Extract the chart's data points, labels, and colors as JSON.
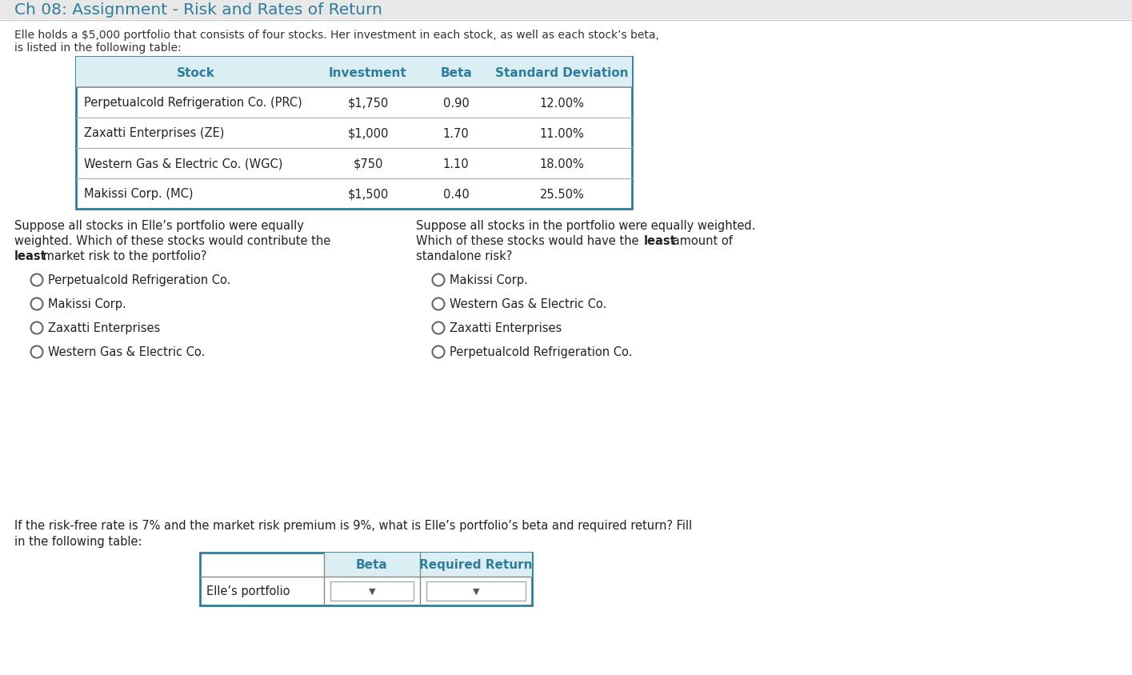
{
  "title": "Ch 08: Assignment - Risk and Rates of Return",
  "title_color": "#2E7D9C",
  "bg_color": "#ffffff",
  "header_bar_color": "#e8e8e8",
  "intro_line1": "Elle holds a $5,000 portfolio that consists of four stocks. Her investment in each stock, as well as each stock’s beta,",
  "intro_line2": "is listed in the following table:",
  "table_headers": [
    "Stock",
    "Investment",
    "Beta",
    "Standard Deviation"
  ],
  "table_rows": [
    [
      "Perpetualcold Refrigeration Co. (PRC)",
      "$1,750",
      "0.90",
      "12.00%"
    ],
    [
      "Zaxatti Enterprises (ZE)",
      "$1,000",
      "1.70",
      "11.00%"
    ],
    [
      "Western Gas & Electric Co. (WGC)",
      "$750",
      "1.10",
      "18.00%"
    ],
    [
      "Makissi Corp. (MC)",
      "$1,500",
      "0.40",
      "25.50%"
    ]
  ],
  "table_header_bg": "#daeef3",
  "table_border_color": "#2E7D9C",
  "q1_lines": [
    "Suppose all stocks in Elle’s portfolio were equally",
    "weighted. Which of these stocks would contribute the",
    " market risk to the portfolio?"
  ],
  "q1_options": [
    "Perpetualcold Refrigeration Co.",
    "Makissi Corp.",
    "Zaxatti Enterprises",
    "Western Gas & Electric Co."
  ],
  "q2_lines": [
    "Suppose all stocks in the portfolio were equally weighted.",
    "Which of these stocks would have the  amount of",
    "standalone risk?"
  ],
  "q2_options": [
    "Makissi Corp.",
    "Western Gas & Electric Co.",
    "Zaxatti Enterprises",
    "Perpetualcold Refrigeration Co."
  ],
  "q3_line1": "If the risk-free rate is 7% and the market risk premium is 9%, what is Elle’s portfolio’s beta and required return? Fill",
  "q3_line2": "in the following table:",
  "q3_table_headers": [
    "Beta",
    "Required Return"
  ],
  "q3_row_label": "Elle’s portfolio",
  "q3_table_bg": "#daeef3",
  "q3_table_border": "#2E7D9C"
}
